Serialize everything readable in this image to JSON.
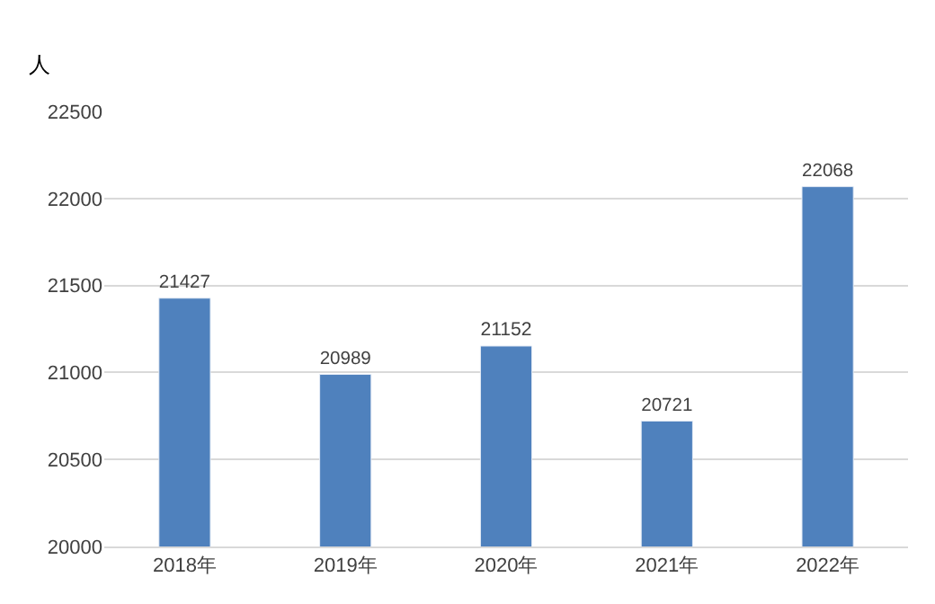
{
  "chart_data": {
    "type": "bar",
    "ylabel": "人",
    "categories": [
      "2018年",
      "2019年",
      "2020年",
      "2021年",
      "2022年"
    ],
    "values": [
      21427,
      20989,
      21152,
      20721,
      22068
    ],
    "color": "#4f81bd",
    "ylim": [
      20000,
      22500
    ],
    "yticks": [
      20000,
      20500,
      21000,
      21500,
      22000,
      22500
    ],
    "grid": "y",
    "data_labels": true
  }
}
